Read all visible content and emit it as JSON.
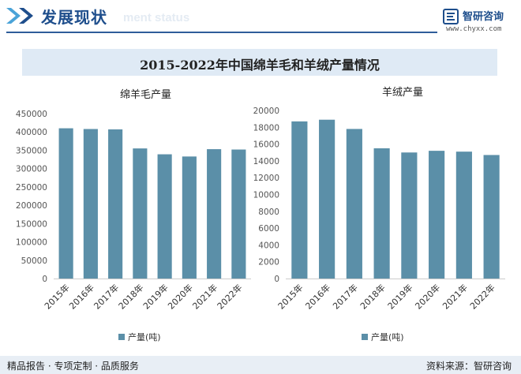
{
  "header": {
    "title": "发展现状",
    "ghost_text": "ment status",
    "logo_name": "智研咨询",
    "logo_url": "www.chyxx.com"
  },
  "main_title": "2015-2022年中国绵羊毛和羊绒产量情况",
  "chart_data": [
    {
      "type": "bar",
      "title": "绵羊毛产量",
      "categories": [
        "2015年",
        "2016年",
        "2017年",
        "2018年",
        "2019年",
        "2020年",
        "2021年",
        "2022年"
      ],
      "series": [
        {
          "name": "产量(吨)",
          "values": [
            410000,
            408000,
            407000,
            355000,
            339000,
            333000,
            353000,
            352000
          ]
        }
      ],
      "yticks": [
        0,
        50000,
        100000,
        150000,
        200000,
        250000,
        300000,
        350000,
        400000,
        450000
      ],
      "ylim": [
        0,
        450000
      ],
      "color": "#5b8fa8"
    },
    {
      "type": "bar",
      "title": "羊绒产量",
      "categories": [
        "2015年",
        "2016年",
        "2017年",
        "2018年",
        "2019年",
        "2020年",
        "2021年",
        "2022年"
      ],
      "series": [
        {
          "name": "产量(吨)",
          "values": [
            18700,
            18900,
            17800,
            15500,
            15000,
            15200,
            15100,
            14700
          ]
        }
      ],
      "yticks": [
        0,
        2000,
        4000,
        6000,
        8000,
        10000,
        12000,
        14000,
        16000,
        18000,
        20000
      ],
      "ylim": [
        0,
        20000
      ],
      "color": "#5b8fa8"
    }
  ],
  "footer": {
    "left": "精品报告 · 专项定制 · 品质服务",
    "right": "资料来源：智研咨询"
  }
}
